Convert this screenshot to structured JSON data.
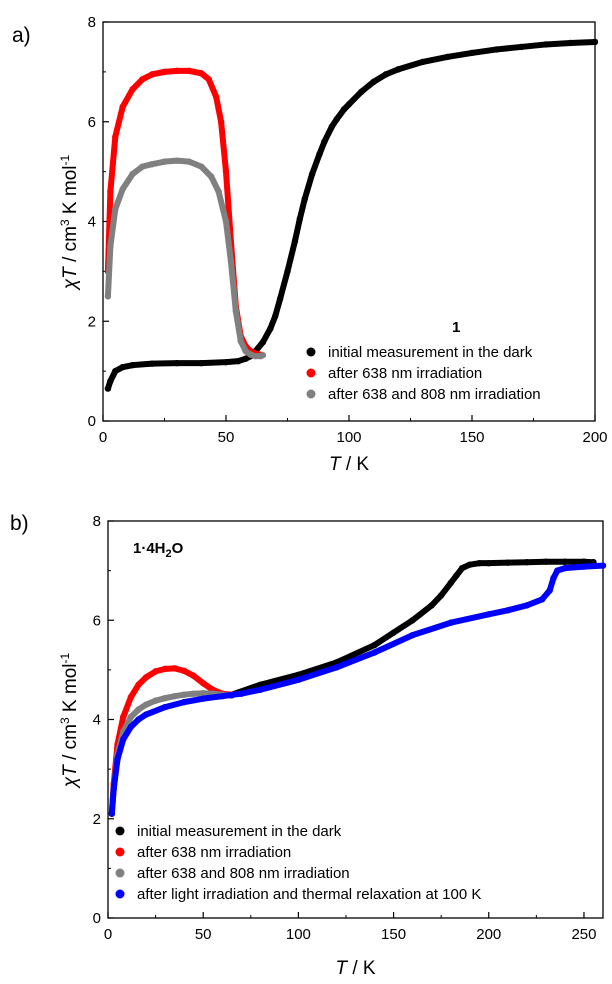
{
  "chart_data": [
    {
      "type": "scatter",
      "panel_label": "a)",
      "compound_label": "1",
      "xlabel": {
        "italic": "T",
        "rest": " / K"
      },
      "ylabel": {
        "parts": [
          "χT / cm",
          "3",
          " K mol",
          "-1"
        ]
      },
      "xlim": [
        0,
        200
      ],
      "ylim": [
        0,
        8
      ],
      "xticks": [
        "0",
        "50",
        "100",
        "150",
        "200"
      ],
      "yticks": [
        "0",
        "2",
        "4",
        "6",
        "8"
      ],
      "legend_position": "bottom-right",
      "series": [
        {
          "name": "initial measurement in the dark",
          "color": "#000000",
          "x": [
            2,
            3,
            5,
            8,
            12,
            20,
            30,
            40,
            50,
            55,
            58,
            60,
            62,
            65,
            68,
            70,
            72,
            75,
            78,
            80,
            82,
            85,
            88,
            90,
            93,
            95,
            98,
            100,
            105,
            110,
            115,
            120,
            130,
            140,
            150,
            160,
            170,
            180,
            190,
            200
          ],
          "y": [
            0.65,
            0.8,
            1.0,
            1.08,
            1.12,
            1.15,
            1.16,
            1.16,
            1.18,
            1.2,
            1.25,
            1.3,
            1.4,
            1.58,
            1.85,
            2.1,
            2.45,
            3.0,
            3.6,
            4.05,
            4.45,
            4.95,
            5.35,
            5.6,
            5.9,
            6.05,
            6.25,
            6.35,
            6.6,
            6.8,
            6.95,
            7.05,
            7.2,
            7.3,
            7.38,
            7.45,
            7.5,
            7.55,
            7.58,
            7.6
          ]
        },
        {
          "name": "after 638 nm irradiation",
          "color": "#ff0000",
          "x": [
            2,
            3,
            5,
            8,
            12,
            16,
            20,
            25,
            30,
            35,
            40,
            43,
            46,
            48,
            50,
            52,
            54,
            56,
            58,
            60,
            62,
            64
          ],
          "y": [
            3.0,
            4.6,
            5.7,
            6.3,
            6.65,
            6.85,
            6.95,
            7.0,
            7.02,
            7.02,
            6.97,
            6.85,
            6.5,
            6.0,
            5.0,
            3.6,
            2.3,
            1.7,
            1.5,
            1.4,
            1.35,
            1.33
          ]
        },
        {
          "name": "after 638 and 808 nm irradiation",
          "color": "#808080",
          "x": [
            2,
            3,
            5,
            8,
            12,
            16,
            20,
            25,
            30,
            35,
            40,
            44,
            47,
            50,
            52,
            54,
            56,
            58,
            60,
            62,
            64,
            65
          ],
          "y": [
            2.5,
            3.5,
            4.25,
            4.65,
            4.95,
            5.1,
            5.15,
            5.2,
            5.22,
            5.2,
            5.1,
            4.9,
            4.6,
            4.0,
            3.2,
            2.2,
            1.6,
            1.4,
            1.33,
            1.3,
            1.3,
            1.32
          ]
        }
      ]
    },
    {
      "type": "scatter",
      "panel_label": "b)",
      "compound_label": {
        "parts": [
          "1·4H",
          "2",
          "O"
        ]
      },
      "xlabel": {
        "italic": "T",
        "rest": " / K"
      },
      "ylabel": {
        "parts": [
          "χT / cm",
          "3",
          " K mol",
          "-1"
        ]
      },
      "xlim": [
        0,
        260
      ],
      "ylim": [
        0,
        8
      ],
      "xticks": [
        "0",
        "50",
        "100",
        "150",
        "200",
        "250"
      ],
      "yticks": [
        "0",
        "2",
        "4",
        "6",
        "8"
      ],
      "legend_position": "bottom-left",
      "series": [
        {
          "name": "initial measurement in the dark",
          "color": "#000000",
          "x": [
            65,
            80,
            100,
            120,
            140,
            150,
            160,
            170,
            175,
            180,
            183,
            186,
            190,
            195,
            200,
            210,
            220,
            230,
            240,
            250,
            255
          ],
          "y": [
            4.5,
            4.7,
            4.9,
            5.15,
            5.5,
            5.75,
            6.0,
            6.3,
            6.5,
            6.75,
            6.9,
            7.05,
            7.12,
            7.15,
            7.15,
            7.16,
            7.17,
            7.18,
            7.18,
            7.18,
            7.17
          ]
        },
        {
          "name": "after 638 nm irradiation",
          "color": "#ff0000",
          "x": [
            2,
            3,
            5,
            8,
            12,
            16,
            20,
            25,
            30,
            35,
            40,
            45,
            50,
            55,
            60,
            65
          ],
          "y": [
            2.1,
            2.7,
            3.5,
            4.05,
            4.45,
            4.7,
            4.85,
            4.97,
            5.02,
            5.03,
            4.98,
            4.88,
            4.73,
            4.6,
            4.52,
            4.5
          ]
        },
        {
          "name": "after 638 and 808 nm irradiation",
          "color": "#808080",
          "x": [
            2,
            3,
            5,
            8,
            12,
            16,
            20,
            25,
            30,
            35,
            40,
            45,
            50,
            55,
            60,
            65
          ],
          "y": [
            2.1,
            2.6,
            3.3,
            3.75,
            4.05,
            4.2,
            4.3,
            4.38,
            4.43,
            4.47,
            4.5,
            4.52,
            4.53,
            4.52,
            4.5,
            4.48
          ]
        },
        {
          "name": "after light irradiation and thermal relaxation at 100 K",
          "color": "#0000ff",
          "x": [
            2,
            3,
            5,
            8,
            12,
            16,
            20,
            30,
            40,
            50,
            60,
            70,
            80,
            100,
            120,
            140,
            160,
            180,
            200,
            210,
            220,
            228,
            232,
            234,
            236,
            240,
            250,
            260
          ],
          "y": [
            2.1,
            2.6,
            3.2,
            3.6,
            3.85,
            4.0,
            4.1,
            4.25,
            4.35,
            4.42,
            4.47,
            4.52,
            4.6,
            4.8,
            5.05,
            5.35,
            5.7,
            5.95,
            6.12,
            6.2,
            6.3,
            6.42,
            6.6,
            6.85,
            7.0,
            7.05,
            7.08,
            7.1
          ]
        }
      ]
    }
  ]
}
